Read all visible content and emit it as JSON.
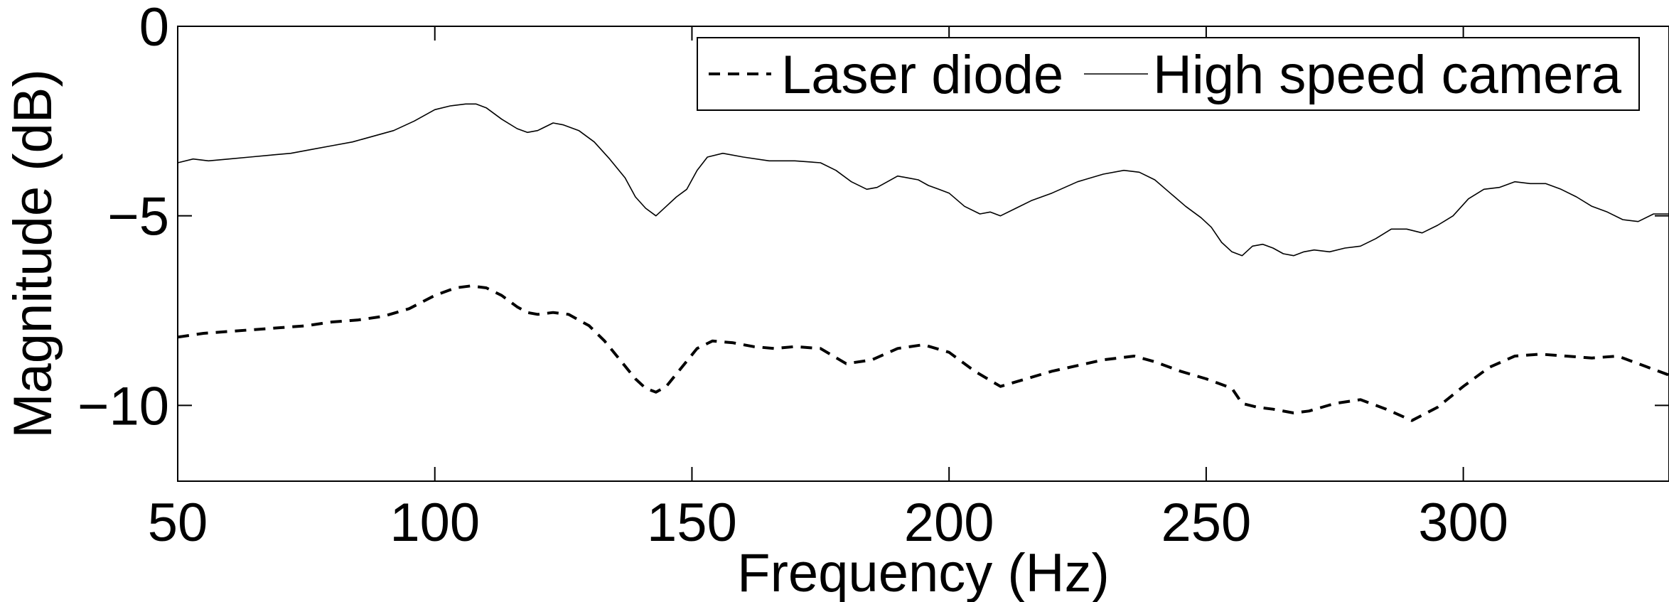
{
  "chart_data": {
    "type": "line",
    "xlabel": "Frequency (Hz)",
    "ylabel": "Magnitude (dB)",
    "xlim": [
      50,
      340
    ],
    "ylim": [
      -12,
      0
    ],
    "xticks": [
      50,
      100,
      150,
      200,
      250,
      300
    ],
    "yticks": [
      0,
      -5,
      -10
    ],
    "xtick_labels": [
      "50",
      "100",
      "150",
      "200",
      "250",
      "300"
    ],
    "ytick_labels": [
      "0",
      "−5",
      "−10"
    ],
    "grid": false,
    "legend": "top-right",
    "series": [
      {
        "name": "Laser diode",
        "style": "dashed",
        "color": "#000000",
        "x": [
          50,
          55,
          60,
          65,
          70,
          75,
          80,
          85,
          90,
          95,
          100,
          104,
          107,
          110,
          113,
          116,
          118,
          120,
          123,
          126,
          130,
          133,
          136,
          139,
          141,
          143,
          145,
          148,
          151,
          154,
          158,
          162,
          166,
          170,
          175,
          180,
          185,
          190,
          195,
          200,
          205,
          210,
          215,
          220,
          225,
          230,
          236,
          240,
          245,
          250,
          255,
          257,
          260,
          263,
          267,
          270,
          275,
          280,
          285,
          290,
          295,
          300,
          305,
          310,
          315,
          320,
          325,
          330,
          335,
          340
        ],
        "values": [
          -8.2,
          -8.1,
          -8.05,
          -8.0,
          -7.95,
          -7.9,
          -7.8,
          -7.75,
          -7.65,
          -7.45,
          -7.1,
          -6.9,
          -6.85,
          -6.9,
          -7.1,
          -7.4,
          -7.55,
          -7.6,
          -7.55,
          -7.6,
          -7.9,
          -8.3,
          -8.8,
          -9.3,
          -9.55,
          -9.65,
          -9.5,
          -9.0,
          -8.5,
          -8.3,
          -8.35,
          -8.45,
          -8.5,
          -8.45,
          -8.5,
          -8.9,
          -8.8,
          -8.5,
          -8.4,
          -8.6,
          -9.1,
          -9.5,
          -9.3,
          -9.1,
          -8.95,
          -8.8,
          -8.7,
          -8.85,
          -9.1,
          -9.3,
          -9.55,
          -9.95,
          -10.05,
          -10.1,
          -10.2,
          -10.15,
          -9.95,
          -9.85,
          -10.1,
          -10.4,
          -10.05,
          -9.5,
          -9.0,
          -8.7,
          -8.65,
          -8.7,
          -8.75,
          -8.7,
          -8.95,
          -9.2
        ]
      },
      {
        "name": "High speed camera",
        "style": "solid",
        "color": "#000000",
        "x": [
          50,
          53,
          56,
          60,
          64,
          68,
          72,
          76,
          80,
          84,
          88,
          92,
          96,
          100,
          103,
          106,
          108,
          110,
          113,
          116,
          118,
          120,
          123,
          125,
          128,
          131,
          134,
          137,
          139,
          141,
          143,
          145,
          147,
          149,
          151,
          153,
          156,
          160,
          165,
          170,
          175,
          178,
          181,
          184,
          186,
          188,
          190,
          192,
          194,
          196,
          198,
          200,
          203,
          206,
          208,
          210,
          213,
          216,
          220,
          225,
          230,
          234,
          237,
          240,
          243,
          246,
          249,
          251,
          253,
          255,
          257,
          259,
          261,
          263,
          265,
          267,
          269,
          271,
          274,
          277,
          280,
          283,
          286,
          289,
          292,
          295,
          298,
          301,
          304,
          307,
          310,
          313,
          316,
          319,
          322,
          325,
          328,
          331,
          334,
          337,
          340
        ],
        "values": [
          -3.6,
          -3.5,
          -3.55,
          -3.5,
          -3.45,
          -3.4,
          -3.35,
          -3.25,
          -3.15,
          -3.05,
          -2.9,
          -2.75,
          -2.5,
          -2.2,
          -2.1,
          -2.05,
          -2.05,
          -2.15,
          -2.45,
          -2.7,
          -2.8,
          -2.75,
          -2.55,
          -2.6,
          -2.75,
          -3.05,
          -3.5,
          -4.0,
          -4.5,
          -4.8,
          -5.0,
          -4.75,
          -4.5,
          -4.3,
          -3.8,
          -3.45,
          -3.35,
          -3.45,
          -3.55,
          -3.55,
          -3.6,
          -3.8,
          -4.1,
          -4.3,
          -4.25,
          -4.1,
          -3.95,
          -4.0,
          -4.05,
          -4.2,
          -4.3,
          -4.4,
          -4.75,
          -4.95,
          -4.9,
          -5.0,
          -4.8,
          -4.6,
          -4.4,
          -4.1,
          -3.9,
          -3.8,
          -3.85,
          -4.05,
          -4.4,
          -4.75,
          -5.05,
          -5.3,
          -5.7,
          -5.95,
          -6.05,
          -5.8,
          -5.75,
          -5.85,
          -6.0,
          -6.05,
          -5.95,
          -5.9,
          -5.95,
          -5.85,
          -5.8,
          -5.6,
          -5.35,
          -5.35,
          -5.45,
          -5.25,
          -5.0,
          -4.55,
          -4.3,
          -4.25,
          -4.1,
          -4.15,
          -4.15,
          -4.3,
          -4.5,
          -4.75,
          -4.9,
          -5.1,
          -5.15,
          -4.95,
          -4.95
        ]
      }
    ]
  }
}
